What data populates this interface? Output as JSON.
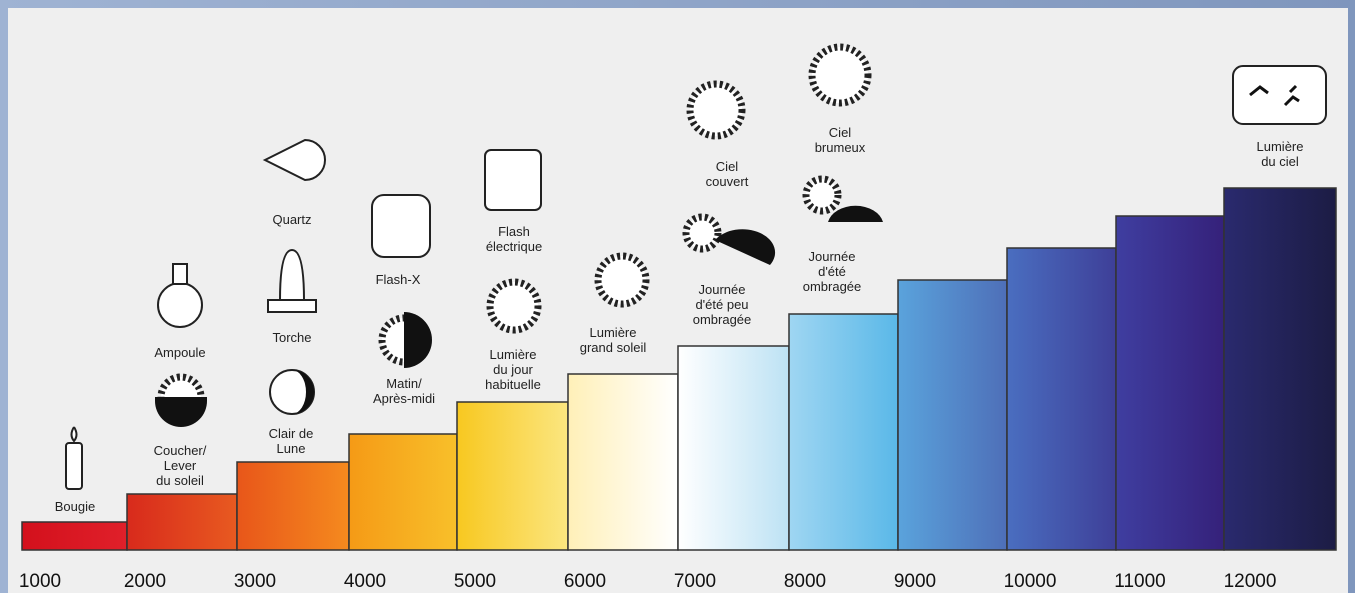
{
  "scale": {
    "ticks": [
      "1000",
      "2000",
      "3000",
      "4000",
      "5000",
      "6000",
      "7000",
      "8000",
      "9000",
      "10000",
      "11000",
      "12000"
    ]
  },
  "labels": [
    {
      "lines": [
        "Bougie"
      ]
    },
    {
      "lines": [
        "Coucher/",
        "Lever",
        "du soleil"
      ]
    },
    {
      "lines": [
        "Ampoule"
      ]
    },
    {
      "lines": [
        "Clair de",
        "Lune"
      ]
    },
    {
      "lines": [
        "Torche"
      ]
    },
    {
      "lines": [
        "Quartz"
      ]
    },
    {
      "lines": [
        "Matin/",
        "Après-midi"
      ]
    },
    {
      "lines": [
        "Flash-X"
      ]
    },
    {
      "lines": [
        "Lumière",
        "du jour",
        "habituelle"
      ]
    },
    {
      "lines": [
        "Flash",
        "électrique"
      ]
    },
    {
      "lines": [
        "Lumière",
        "grand soleil"
      ]
    },
    {
      "lines": [
        "Journée",
        "d'été peu",
        "ombragée"
      ]
    },
    {
      "lines": [
        "Ciel",
        "couvert"
      ]
    },
    {
      "lines": [
        "Journée",
        "d'été",
        "ombragée"
      ]
    },
    {
      "lines": [
        "Ciel",
        "brumeux"
      ]
    },
    {
      "lines": [
        "Lumière",
        "du ciel"
      ]
    }
  ]
}
